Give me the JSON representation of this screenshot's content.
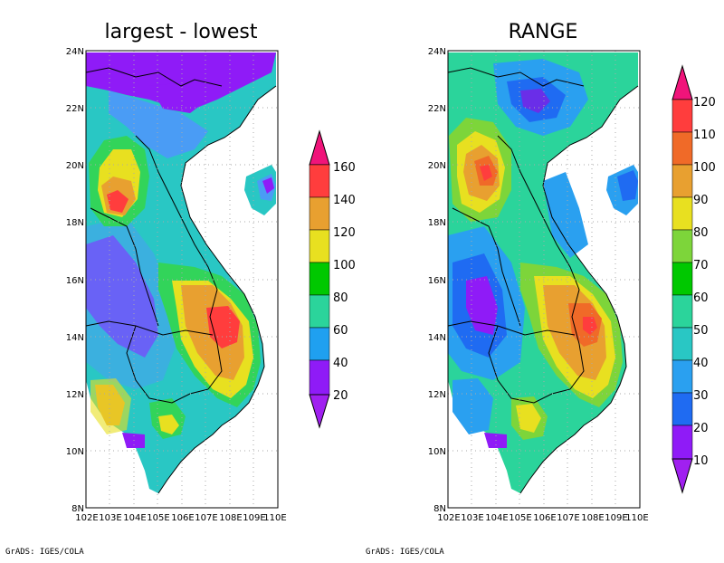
{
  "credit": "GrADS: IGES/COLA",
  "lat_ticks": [
    "8N",
    "10N",
    "12N",
    "14N",
    "16N",
    "18N",
    "20N",
    "22N",
    "24N"
  ],
  "lon_ticks": [
    "102E",
    "103E",
    "104E",
    "105E",
    "106E",
    "107E",
    "108E",
    "109E",
    "110E"
  ],
  "maps": [
    {
      "title": "largest - lowest",
      "colorbar_labels": [
        "20",
        "40",
        "60",
        "80",
        "100",
        "120",
        "140",
        "160"
      ],
      "colors": [
        "#8f1bf7",
        "#4a9cf5",
        "#29c7c4",
        "#32d45a",
        "#00c800",
        "#e8e020",
        "#e8a030",
        "#ff3d3d",
        "#f0147a"
      ],
      "hotspots": [
        {
          "lon": 103.3,
          "lat": 18.7,
          "level": 7
        },
        {
          "lon": 107.6,
          "lat": 14.4,
          "level": 7
        },
        {
          "lon": 107.2,
          "lat": 14.8,
          "level": 6
        },
        {
          "lon": 103.5,
          "lat": 11.8,
          "level": 5
        },
        {
          "lon": 105.5,
          "lat": 10.8,
          "level": 5
        },
        {
          "lon": 104.5,
          "lat": 22.5,
          "level": 1
        }
      ]
    },
    {
      "title": "RANGE",
      "colorbar_labels": [
        "10",
        "20",
        "30",
        "40",
        "50",
        "60",
        "70",
        "80",
        "90",
        "100",
        "110",
        "120"
      ],
      "colors": [
        "#8f1bf7",
        "#6a2ee8",
        "#1f6bf2",
        "#2aa0f0",
        "#29c7c4",
        "#2bd49b",
        "#00c800",
        "#7dd53a",
        "#e8e020",
        "#e8a030",
        "#f06a28",
        "#ff3d3d",
        "#f0147a"
      ],
      "hotspots": [
        {
          "lon": 103.6,
          "lat": 19.6,
          "level": 10
        },
        {
          "lon": 107.8,
          "lat": 14.4,
          "level": 10
        },
        {
          "lon": 107.2,
          "lat": 14.8,
          "level": 9
        },
        {
          "lon": 105.4,
          "lat": 11.2,
          "level": 8
        },
        {
          "lon": 104.2,
          "lat": 13.8,
          "level": 1
        },
        {
          "lon": 104.8,
          "lat": 22.6,
          "level": 2
        }
      ]
    }
  ]
}
